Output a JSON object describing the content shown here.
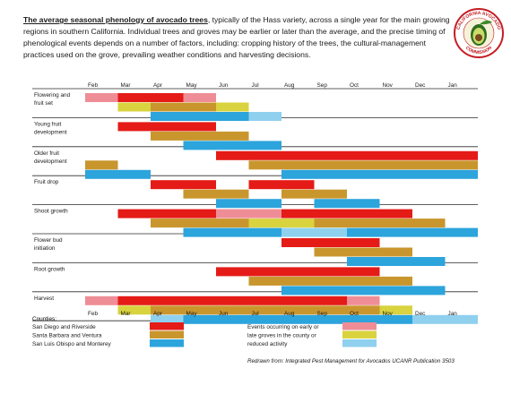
{
  "intro": {
    "lead": "The average seasonal phenology of avocado trees",
    "rest": ", typically of the Hass variety, across a single year for the main growing regions in southern California. Individual trees and groves may be earlier or later than the average, and the precise timing of phenological events depends on a number of factors, including: cropping history of the trees, the cultural-management practices used on the grove, prevailing weather conditions and harvesting decisions."
  },
  "logo": {
    "top_text": "CALIFORNIA AVOCADO",
    "bottom_text": "COMMISSION",
    "icon": "avocado-icon"
  },
  "legend": {
    "title": "Counties:",
    "counties": [
      {
        "key": "sd",
        "label": "San Diego and Riverside"
      },
      {
        "key": "sb",
        "label": "Santa Barbara and Ventura"
      },
      {
        "key": "slo",
        "label": "San Luis Obispo and Monterey"
      }
    ],
    "variation_note": [
      "Events occurring on early or",
      "late groves in the county or",
      "reduced activity"
    ]
  },
  "credit": "Redrawn from: Integrated Pest Management for Avocados UCANR Publication 3503",
  "colors": {
    "sd": "#e41b17",
    "sb": "#c9962e",
    "slo": "#2ca4dc",
    "sd_light": "#ef8d96",
    "sb_light": "#d8d33e",
    "slo_light": "#8fd0ee",
    "grid": "#2a2a2a"
  },
  "chart_data": {
    "type": "gantt",
    "x_unit": "month",
    "months": [
      "Feb",
      "Mar",
      "Apr",
      "May",
      "Jun",
      "Jul",
      "Aug",
      "Sep",
      "Oct",
      "Nov",
      "Dec",
      "Jan"
    ],
    "xlim": [
      "Feb",
      "Jan"
    ],
    "series": [
      {
        "key": "sd",
        "name": "San Diego and Riverside"
      },
      {
        "key": "sb",
        "name": "Santa Barbara and Ventura"
      },
      {
        "key": "slo",
        "name": "San Luis Obispo and Monterey"
      }
    ],
    "events": [
      {
        "label": [
          "Flowering and",
          "fruit set"
        ],
        "bars": [
          {
            "county": "sd",
            "segments": [
              {
                "start": "Feb",
                "end": "Mar",
                "light": true
              },
              {
                "start": "Mar",
                "end": "May"
              },
              {
                "start": "May",
                "end": "Jun",
                "light": true
              }
            ]
          },
          {
            "county": "sb",
            "segments": [
              {
                "start": "Mar",
                "end": "Apr",
                "light": true
              },
              {
                "start": "Apr",
                "end": "Jun"
              },
              {
                "start": "Jun",
                "end": "Jul",
                "light": true
              }
            ]
          },
          {
            "county": "slo",
            "segments": [
              {
                "start": "Apr",
                "end": "Jul"
              },
              {
                "start": "Jul",
                "end": "Aug",
                "light": true
              }
            ]
          }
        ]
      },
      {
        "label": [
          "Young fruit",
          "development"
        ],
        "bars": [
          {
            "county": "sd",
            "segments": [
              {
                "start": "Mar",
                "end": "Jun"
              }
            ]
          },
          {
            "county": "sb",
            "segments": [
              {
                "start": "Apr",
                "end": "Jul"
              }
            ]
          },
          {
            "county": "slo",
            "segments": [
              {
                "start": "May",
                "end": "Aug"
              }
            ]
          }
        ]
      },
      {
        "label": [
          "Older fruit",
          "development"
        ],
        "bars": [
          {
            "county": "sd",
            "segments": [
              {
                "start": "Jun",
                "end": "Jan+"
              }
            ]
          },
          {
            "county": "sb",
            "segments": [
              {
                "start": "Feb",
                "end": "Mar"
              },
              {
                "start": "Jul",
                "end": "Jan+"
              }
            ]
          },
          {
            "county": "slo",
            "segments": [
              {
                "start": "Feb",
                "end": "Apr"
              },
              {
                "start": "Aug",
                "end": "Jan+"
              }
            ]
          }
        ]
      },
      {
        "label": [
          "Fruit drop"
        ],
        "bars": [
          {
            "county": "sd",
            "segments": [
              {
                "start": "Apr",
                "end": "Jun"
              },
              {
                "start": "Jul",
                "end": "Sep"
              }
            ]
          },
          {
            "county": "sb",
            "segments": [
              {
                "start": "May",
                "end": "Jul"
              },
              {
                "start": "Aug",
                "end": "Oct"
              }
            ]
          },
          {
            "county": "slo",
            "segments": [
              {
                "start": "Jun",
                "end": "Aug"
              },
              {
                "start": "Sep",
                "end": "Nov"
              }
            ]
          }
        ]
      },
      {
        "label": [
          "Shoot growth"
        ],
        "bars": [
          {
            "county": "sd",
            "segments": [
              {
                "start": "Mar",
                "end": "Jun"
              },
              {
                "start": "Jun",
                "end": "Aug",
                "light": true
              },
              {
                "start": "Aug",
                "end": "Dec"
              }
            ]
          },
          {
            "county": "sb",
            "segments": [
              {
                "start": "Apr",
                "end": "Jul"
              },
              {
                "start": "Jul",
                "end": "Sep",
                "light": true
              },
              {
                "start": "Sep",
                "end": "Jan"
              }
            ]
          },
          {
            "county": "slo",
            "segments": [
              {
                "start": "May",
                "end": "Aug"
              },
              {
                "start": "Aug",
                "end": "Oct",
                "light": true
              },
              {
                "start": "Oct",
                "end": "Jan+"
              }
            ]
          }
        ]
      },
      {
        "label": [
          "Flower bud",
          "initiation"
        ],
        "bars": [
          {
            "county": "sd",
            "segments": [
              {
                "start": "Aug",
                "end": "Nov"
              }
            ]
          },
          {
            "county": "sb",
            "segments": [
              {
                "start": "Sep",
                "end": "Dec"
              }
            ]
          },
          {
            "county": "slo",
            "segments": [
              {
                "start": "Oct",
                "end": "Jan"
              }
            ]
          }
        ]
      },
      {
        "label": [
          "Root growth"
        ],
        "bars": [
          {
            "county": "sd",
            "segments": [
              {
                "start": "Jun",
                "end": "Nov"
              }
            ]
          },
          {
            "county": "sb",
            "segments": [
              {
                "start": "Jul",
                "end": "Dec"
              }
            ]
          },
          {
            "county": "slo",
            "segments": [
              {
                "start": "Aug",
                "end": "Jan"
              }
            ]
          }
        ]
      },
      {
        "label": [
          "Harvest"
        ],
        "bars": [
          {
            "county": "sd",
            "segments": [
              {
                "start": "Feb",
                "end": "Mar",
                "light": true
              },
              {
                "start": "Mar",
                "end": "Oct"
              },
              {
                "start": "Oct",
                "end": "Nov",
                "light": true
              }
            ]
          },
          {
            "county": "sb",
            "segments": [
              {
                "start": "Mar",
                "end": "Apr",
                "light": true
              },
              {
                "start": "Apr",
                "end": "Nov"
              },
              {
                "start": "Nov",
                "end": "Dec",
                "light": true
              }
            ]
          },
          {
            "county": "slo",
            "segments": [
              {
                "start": "Apr",
                "end": "May",
                "light": true
              },
              {
                "start": "May",
                "end": "Dec"
              },
              {
                "start": "Dec",
                "end": "Jan+",
                "light": true
              }
            ]
          }
        ]
      }
    ]
  }
}
